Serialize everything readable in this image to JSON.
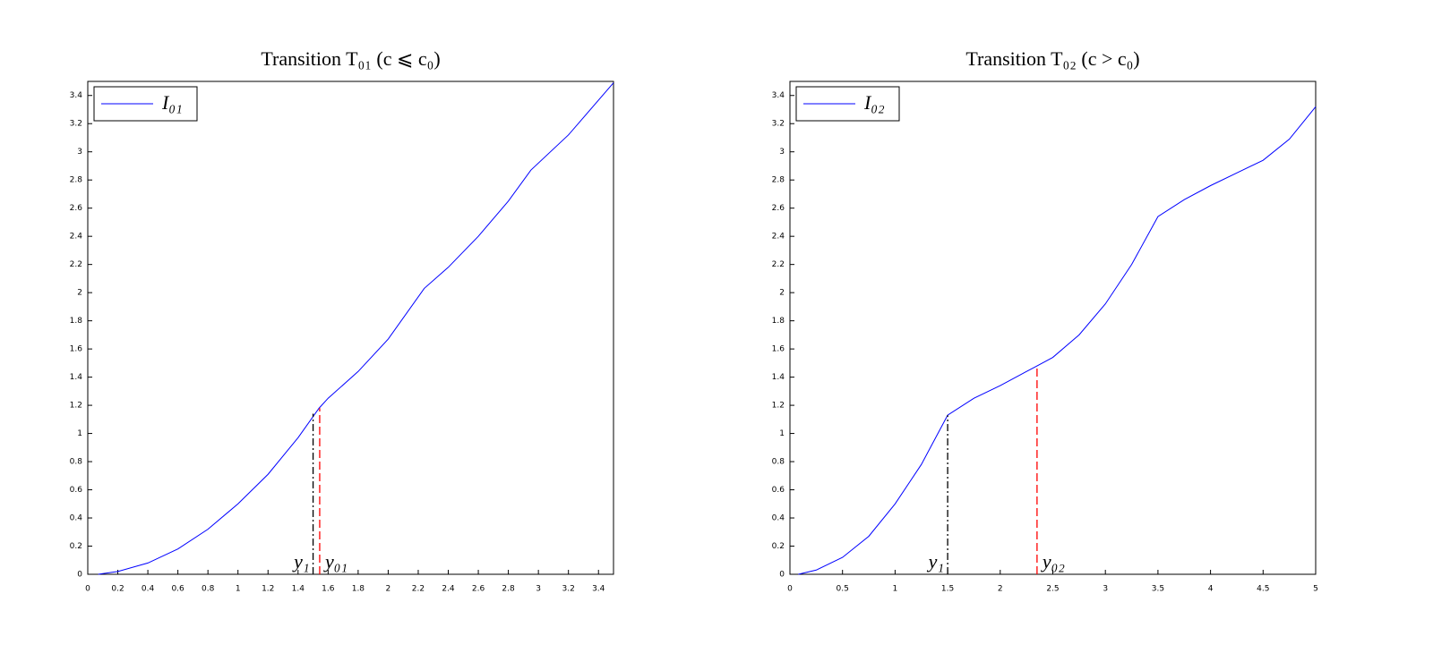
{
  "chart_data": [
    {
      "type": "line",
      "title": "Transition T₀₁ (c ⩽ c₀)",
      "x": [
        0.07,
        0.1,
        0.2,
        0.4,
        0.6,
        0.8,
        1.0,
        1.2,
        1.4,
        1.54,
        1.6,
        1.8,
        2.0,
        2.24,
        2.4,
        2.6,
        2.8,
        2.95,
        3.2,
        3.5
      ],
      "series": [
        {
          "name": "I₀₁",
          "color": "#0000ff",
          "values": [
            0,
            0.005,
            0.02,
            0.08,
            0.18,
            0.32,
            0.5,
            0.71,
            0.97,
            1.18,
            1.25,
            1.44,
            1.67,
            2.03,
            2.18,
            2.4,
            2.65,
            2.87,
            3.12,
            3.49
          ]
        }
      ],
      "markers": [
        {
          "label": "y₁",
          "x": 1.5,
          "y": 1.14,
          "color": "#000000",
          "style": "dashdot",
          "side": "left"
        },
        {
          "label": "y₀₁",
          "x": 1.544,
          "y": 1.18,
          "color": "#ff0000",
          "style": "dashed",
          "side": "right"
        }
      ],
      "xlim": [
        0,
        3.5
      ],
      "xticks": [
        0,
        0.2,
        0.4,
        0.6,
        0.8,
        1,
        1.2,
        1.4,
        1.6,
        1.8,
        2,
        2.2,
        2.4,
        2.6,
        2.8,
        3,
        3.2,
        3.4
      ],
      "ylim": [
        0,
        3.5
      ],
      "yticks": [
        0,
        0.2,
        0.4,
        0.6,
        0.8,
        1,
        1.2,
        1.4,
        1.6,
        1.8,
        2,
        2.2,
        2.4,
        2.6,
        2.8,
        3,
        3.2,
        3.4
      ],
      "legend": "upper left"
    },
    {
      "type": "line",
      "title": "Transition T₀₂ (c > c₀)",
      "x": [
        0.08,
        0.25,
        0.5,
        0.75,
        1.0,
        1.25,
        1.5,
        1.75,
        2.0,
        2.35,
        2.5,
        2.75,
        3.0,
        3.25,
        3.5,
        3.75,
        4.0,
        4.25,
        4.5,
        4.75,
        5.0
      ],
      "series": [
        {
          "name": "I₀₂",
          "color": "#0000ff",
          "values": [
            0,
            0.03,
            0.12,
            0.27,
            0.5,
            0.78,
            1.13,
            1.25,
            1.34,
            1.48,
            1.54,
            1.7,
            1.92,
            2.2,
            2.54,
            2.66,
            2.76,
            2.85,
            2.94,
            3.09,
            3.32
          ]
        }
      ],
      "markers": [
        {
          "label": "y₁",
          "x": 1.5,
          "y": 1.13,
          "color": "#000000",
          "style": "dashdot",
          "side": "left"
        },
        {
          "label": "y₀₂",
          "x": 2.35,
          "y": 1.48,
          "color": "#ff0000",
          "style": "dashed",
          "side": "right"
        }
      ],
      "xlim": [
        0,
        5
      ],
      "xticks": [
        0,
        0.5,
        1,
        1.5,
        2,
        2.5,
        3,
        3.5,
        4,
        4.5,
        5
      ],
      "ylim": [
        0,
        3.5
      ],
      "yticks": [
        0,
        0.2,
        0.4,
        0.6,
        0.8,
        1,
        1.2,
        1.4,
        1.6,
        1.8,
        2,
        2.2,
        2.4,
        2.6,
        2.8,
        3,
        3.2,
        3.4
      ],
      "legend": "upper left"
    }
  ]
}
